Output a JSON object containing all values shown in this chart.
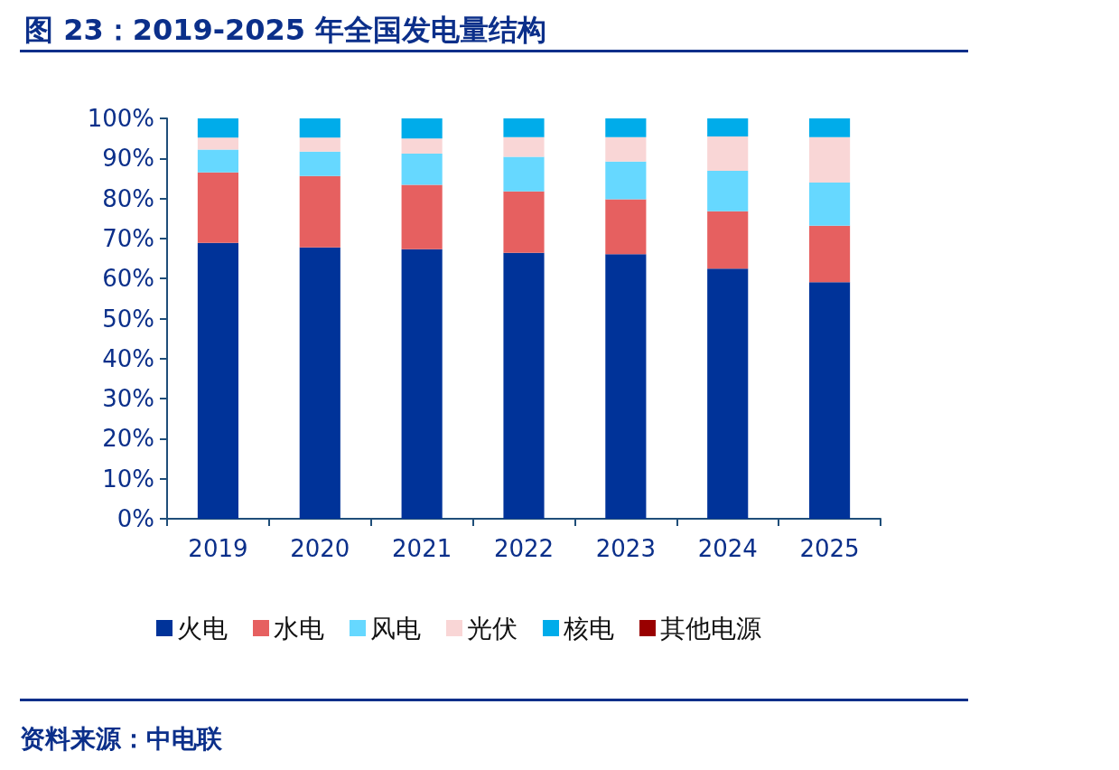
{
  "chart_data": {
    "type": "bar",
    "title": "图 23：2019-2025 年全国发电量结构",
    "stacked": true,
    "categories": [
      "2019",
      "2020",
      "2021",
      "2022",
      "2023",
      "2024",
      "2025"
    ],
    "series": [
      {
        "name": "火电",
        "color": "#003399",
        "values": [
          68.9,
          67.8,
          67.3,
          66.4,
          66.1,
          62.5,
          59.1
        ]
      },
      {
        "name": "水电",
        "color": "#e66060",
        "values": [
          17.6,
          17.8,
          16.1,
          15.4,
          13.7,
          14.3,
          14.1
        ]
      },
      {
        "name": "风电",
        "color": "#66d8ff",
        "values": [
          5.7,
          6.1,
          7.8,
          8.6,
          9.4,
          10.1,
          10.8
        ]
      },
      {
        "name": "光伏",
        "color": "#f9d6d6",
        "values": [
          3.0,
          3.5,
          3.8,
          4.9,
          6.1,
          8.6,
          11.3
        ]
      },
      {
        "name": "核电",
        "color": "#00acea",
        "values": [
          4.8,
          4.8,
          5.0,
          4.7,
          4.7,
          4.5,
          4.7
        ]
      },
      {
        "name": "其他电源",
        "color": "#990000",
        "values": [
          0,
          0,
          0,
          0,
          0,
          0,
          0
        ]
      }
    ],
    "ylim": [
      0,
      100
    ],
    "yticks": [
      {
        "value": 0,
        "label": "0%"
      },
      {
        "value": 10,
        "label": "10%"
      },
      {
        "value": 20,
        "label": "20%"
      },
      {
        "value": 30,
        "label": "30%"
      },
      {
        "value": 40,
        "label": "40%"
      },
      {
        "value": 50,
        "label": "50%"
      },
      {
        "value": 60,
        "label": "60%"
      },
      {
        "value": 70,
        "label": "70%"
      },
      {
        "value": 80,
        "label": "80%"
      },
      {
        "value": 90,
        "label": "90%"
      },
      {
        "value": 100,
        "label": "100%"
      }
    ],
    "grid": false,
    "legend": "bottom",
    "annotations": [
      "资料来源：中电联"
    ]
  }
}
